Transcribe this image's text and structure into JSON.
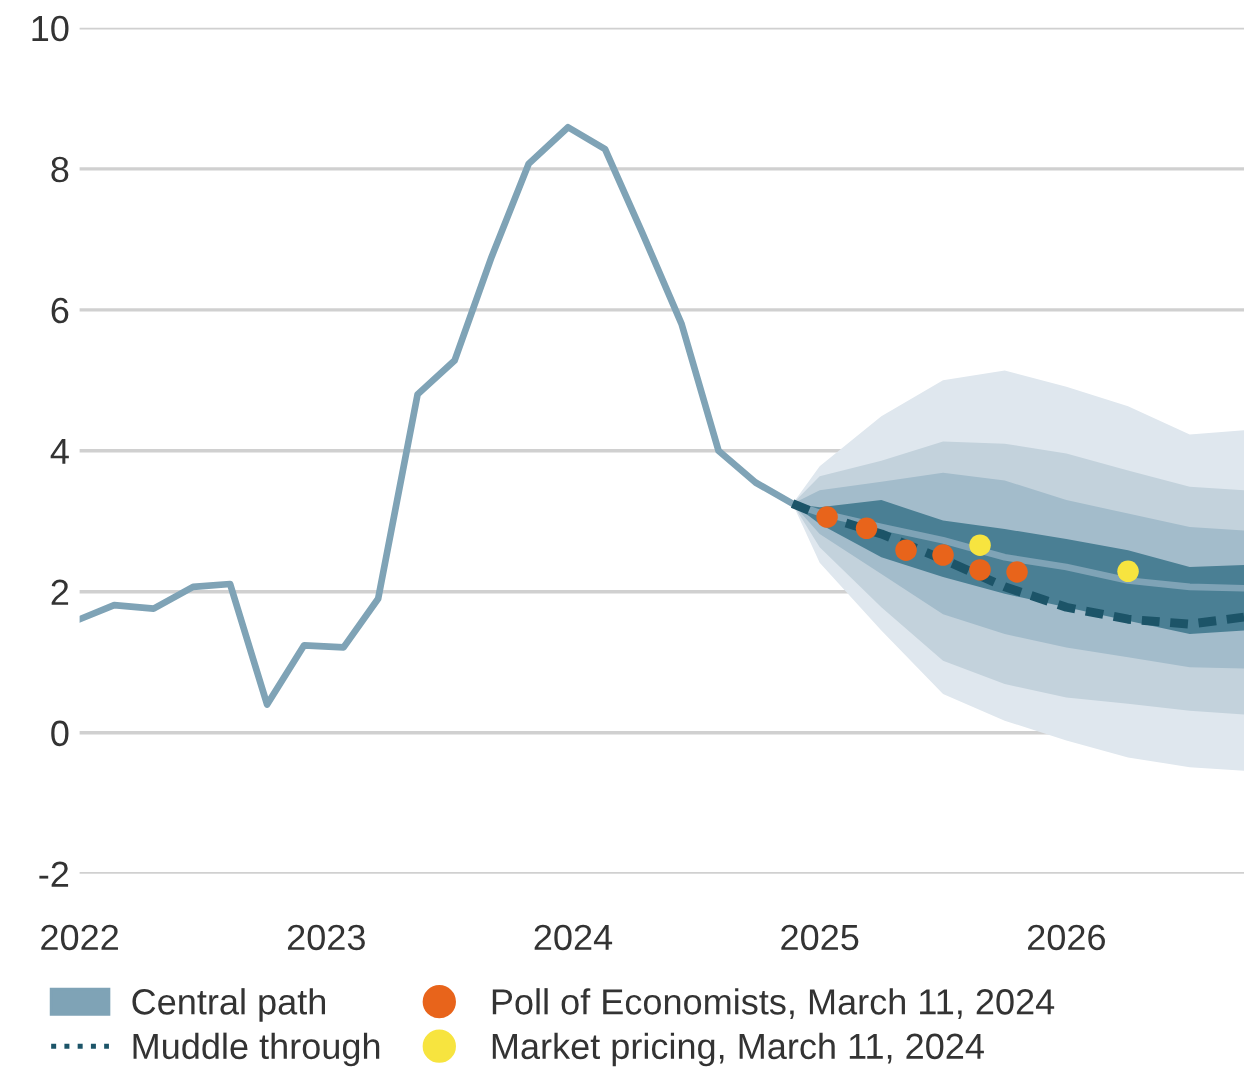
{
  "chart_data": {
    "type": "line",
    "xlim": [
      2022.0,
      2026.72
    ],
    "ylim": [
      -2,
      10
    ],
    "xticks": [
      {
        "value": 2022,
        "label": "2022"
      },
      {
        "value": 2023,
        "label": "2023"
      },
      {
        "value": 2024,
        "label": "2024"
      },
      {
        "value": 2025,
        "label": "2025"
      },
      {
        "value": 2026,
        "label": "2026"
      }
    ],
    "yticks": [
      -2,
      0,
      2,
      4,
      6,
      8,
      10
    ],
    "grid": "y",
    "legend": "bottom",
    "series": [
      {
        "color": "#dfe7ee",
        "x": [
          2024.89,
          2025.0,
          2025.25,
          2025.5,
          2025.75,
          2026.0,
          2026.25,
          2026.5,
          2026.72
        ],
        "values": [
          null,
          null,
          null,
          null,
          null,
          null,
          null,
          null,
          null
        ],
        "lower": [
          3.25,
          2.41,
          1.45,
          0.55,
          0.17,
          -0.11,
          -0.35,
          -0.49,
          -0.54
        ],
        "upper": [
          3.25,
          3.78,
          4.49,
          5.0,
          5.14,
          4.91,
          4.63,
          4.23,
          4.29
        ]
      },
      {
        "color": "#c3d2dc",
        "x": [
          2024.89,
          2025.0,
          2025.25,
          2025.5,
          2025.75,
          2026.0,
          2026.25,
          2026.5,
          2026.72
        ],
        "values": [
          null,
          null,
          null,
          null,
          null,
          null,
          null,
          null,
          null
        ],
        "lower": [
          3.25,
          2.63,
          1.78,
          1.02,
          0.69,
          0.5,
          0.41,
          0.31,
          0.26
        ],
        "upper": [
          3.25,
          3.64,
          3.86,
          4.13,
          4.1,
          3.96,
          3.72,
          3.49,
          3.44
        ]
      },
      {
        "color": "#a3bccb",
        "x": [
          2024.89,
          2025.0,
          2025.25,
          2025.5,
          2025.75,
          2026.0,
          2026.25,
          2026.5,
          2026.72
        ],
        "values": [
          null,
          null,
          null,
          null,
          null,
          null,
          null,
          null,
          null
        ],
        "lower": [
          3.25,
          2.82,
          2.25,
          1.68,
          1.4,
          1.21,
          1.07,
          0.93,
          0.91
        ],
        "upper": [
          3.25,
          3.44,
          3.56,
          3.69,
          3.58,
          3.3,
          3.11,
          2.92,
          2.87
        ]
      },
      {
        "color": "#4a7f94",
        "x": [
          2024.89,
          2025.0,
          2025.25,
          2025.5,
          2025.75,
          2026.0,
          2026.25,
          2026.5,
          2026.72
        ],
        "values": [
          null,
          null,
          null,
          null,
          null,
          null,
          null,
          null,
          null
        ],
        "lower": [
          3.25,
          2.96,
          2.49,
          2.21,
          1.97,
          1.78,
          1.59,
          1.4,
          1.45
        ],
        "upper": [
          3.25,
          3.2,
          3.3,
          3.01,
          2.89,
          2.75,
          2.59,
          2.35,
          2.38
        ]
      },
      {
        "type": "line",
        "name": "Central path",
        "color": "#7fa3b6",
        "line_style": "solid",
        "x": [
          2022.0,
          2022.14,
          2022.3,
          2022.46,
          2022.61,
          2022.76,
          2022.91,
          2023.07,
          2023.21,
          2023.37,
          2023.52,
          2023.67,
          2023.82,
          2023.98,
          2024.13,
          2024.28,
          2024.44,
          2024.59,
          2024.74,
          2024.89,
          2025.0,
          2025.25,
          2025.5,
          2025.75,
          2026.0,
          2026.25,
          2026.5,
          2026.72
        ],
        "values": [
          1.61,
          1.81,
          1.76,
          2.07,
          2.11,
          0.4,
          1.24,
          1.21,
          1.9,
          4.8,
          5.28,
          6.75,
          8.07,
          8.59,
          8.28,
          7.1,
          5.8,
          4.0,
          3.55,
          3.25,
          3.12,
          2.92,
          2.73,
          2.49,
          2.35,
          2.16,
          2.07,
          2.05
        ]
      },
      {
        "type": "line",
        "name": "Muddle through",
        "color": "#1c5468",
        "line_style": "dashed",
        "x": [
          2024.89,
          2025.0,
          2025.25,
          2025.5,
          2025.75,
          2026.0,
          2026.25,
          2026.5,
          2026.72
        ],
        "values": [
          3.25,
          3.09,
          2.82,
          2.46,
          2.07,
          1.78,
          1.61,
          1.54,
          1.64
        ]
      },
      {
        "type": "scatter",
        "name": "Poll of Economists, March 11, 2024",
        "color": "#e8641b",
        "marker": "circle",
        "x": [
          2025.03,
          2025.19,
          2025.35,
          2025.5,
          2025.65,
          2025.8
        ],
        "values": [
          3.06,
          2.9,
          2.59,
          2.52,
          2.31,
          2.28
        ]
      },
      {
        "type": "scatter",
        "name": "Market pricing, March 11, 2024",
        "color": "#f7e43f",
        "marker": "circle",
        "x": [
          2025.65,
          2026.25
        ],
        "values": [
          2.66,
          2.29
        ]
      }
    ]
  }
}
